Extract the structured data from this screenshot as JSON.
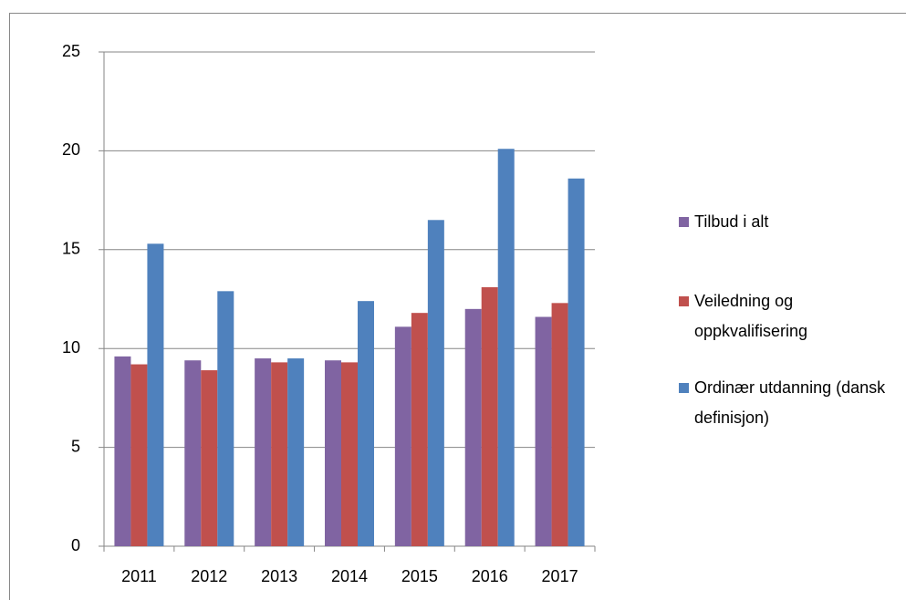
{
  "chart_data": {
    "type": "bar",
    "categories": [
      "2011",
      "2012",
      "2013",
      "2014",
      "2015",
      "2016",
      "2017"
    ],
    "series": [
      {
        "name": "Tilbud i alt",
        "color": "#8064a2",
        "values": [
          9.6,
          9.4,
          9.5,
          9.4,
          11.1,
          12.0,
          11.6
        ]
      },
      {
        "name": "Veiledning og oppkvalifisering",
        "color": "#c0504d",
        "values": [
          9.2,
          8.9,
          9.3,
          9.3,
          11.8,
          13.1,
          12.3
        ]
      },
      {
        "name": "Ordinær utdanning (dansk definisjon)",
        "color": "#4f81bd",
        "values": [
          15.3,
          12.9,
          9.5,
          12.4,
          16.5,
          20.1,
          18.6
        ]
      }
    ],
    "ylim": [
      0,
      25
    ],
    "yticks": [
      0,
      5,
      10,
      15,
      20,
      25
    ],
    "grid": true,
    "legend": "right"
  }
}
